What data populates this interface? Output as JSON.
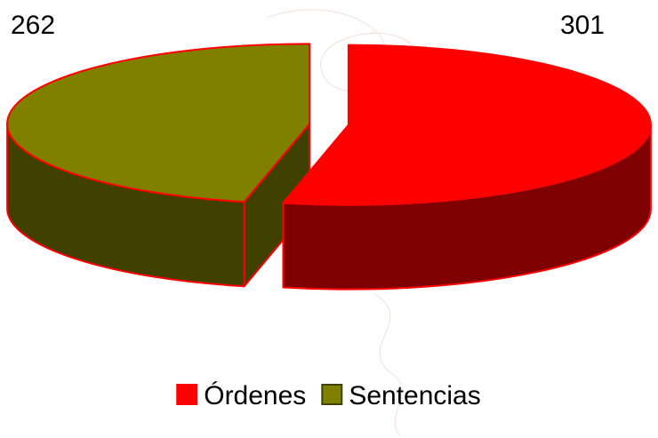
{
  "chart_data": {
    "type": "pie",
    "categories": [
      "Órdenes",
      "Sentencias"
    ],
    "values": [
      301,
      262
    ],
    "colors": [
      "#ff0000",
      "#808000"
    ]
  }
}
